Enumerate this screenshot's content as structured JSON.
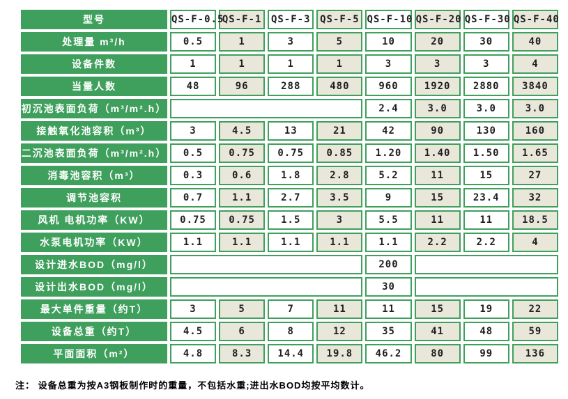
{
  "colors": {
    "green": "#3f9f5c",
    "beige": "#e9e6da",
    "cell_white": "#ffffff",
    "label_text": "#ffffff",
    "value_text": "#1f1f1f"
  },
  "table": {
    "header": {
      "label": "型号",
      "models": [
        "QS-F-0.5",
        "QS-F-1",
        "QS-F-3",
        "QS-F-5",
        "QS-F-10",
        "QS-F-20",
        "QS-F-30",
        "QS-F-40"
      ]
    },
    "rows": [
      {
        "label": "处理量 m³/h",
        "cells": [
          {
            "t": "0.5",
            "s": 1
          },
          {
            "t": "1",
            "s": 1
          },
          {
            "t": "3",
            "s": 1
          },
          {
            "t": "5",
            "s": 1
          },
          {
            "t": "10",
            "s": 1
          },
          {
            "t": "20",
            "s": 1
          },
          {
            "t": "30",
            "s": 1
          },
          {
            "t": "40",
            "s": 1
          }
        ]
      },
      {
        "label": "设备件数",
        "cells": [
          {
            "t": "1",
            "s": 1
          },
          {
            "t": "1",
            "s": 1
          },
          {
            "t": "1",
            "s": 1
          },
          {
            "t": "1",
            "s": 1
          },
          {
            "t": "3",
            "s": 1
          },
          {
            "t": "3",
            "s": 1
          },
          {
            "t": "3",
            "s": 1
          },
          {
            "t": "4",
            "s": 1
          }
        ]
      },
      {
        "label": "当量人数",
        "cells": [
          {
            "t": "48",
            "s": 1
          },
          {
            "t": "96",
            "s": 1
          },
          {
            "t": "288",
            "s": 1
          },
          {
            "t": "480",
            "s": 1
          },
          {
            "t": "960",
            "s": 1
          },
          {
            "t": "1920",
            "s": 1
          },
          {
            "t": "2880",
            "s": 1
          },
          {
            "t": "3840",
            "s": 1
          }
        ]
      },
      {
        "label": "初沉池表面负荷（m³/m².h）",
        "cells": [
          {
            "t": "",
            "s": 4
          },
          {
            "t": "2.4",
            "s": 1
          },
          {
            "t": "3.0",
            "s": 1
          },
          {
            "t": "3.0",
            "s": 1
          },
          {
            "t": "3.0",
            "s": 1
          }
        ]
      },
      {
        "label": "接触氧化池容积（m³）",
        "cells": [
          {
            "t": "3",
            "s": 1
          },
          {
            "t": "4.5",
            "s": 1
          },
          {
            "t": "13",
            "s": 1
          },
          {
            "t": "21",
            "s": 1
          },
          {
            "t": "42",
            "s": 1
          },
          {
            "t": "90",
            "s": 1
          },
          {
            "t": "130",
            "s": 1
          },
          {
            "t": "160",
            "s": 1
          }
        ]
      },
      {
        "label": "二沉池表面负荷（m³/m².h）",
        "cells": [
          {
            "t": "0.5",
            "s": 1
          },
          {
            "t": "0.75",
            "s": 1
          },
          {
            "t": "0.75",
            "s": 1
          },
          {
            "t": "0.85",
            "s": 1
          },
          {
            "t": "1.20",
            "s": 1
          },
          {
            "t": "1.40",
            "s": 1
          },
          {
            "t": "1.50",
            "s": 1
          },
          {
            "t": "1.65",
            "s": 1
          }
        ]
      },
      {
        "label": "消毒池容积（m³）",
        "cells": [
          {
            "t": "0.3",
            "s": 1
          },
          {
            "t": "0.6",
            "s": 1
          },
          {
            "t": "1.8",
            "s": 1
          },
          {
            "t": "2.8",
            "s": 1
          },
          {
            "t": "5.2",
            "s": 1
          },
          {
            "t": "11",
            "s": 1
          },
          {
            "t": "15",
            "s": 1
          },
          {
            "t": "27",
            "s": 1
          }
        ]
      },
      {
        "label": "调节池容积",
        "cells": [
          {
            "t": "0.7",
            "s": 1
          },
          {
            "t": "1.1",
            "s": 1
          },
          {
            "t": "2.7",
            "s": 1
          },
          {
            "t": "3.5",
            "s": 1
          },
          {
            "t": "9",
            "s": 1
          },
          {
            "t": "15",
            "s": 1
          },
          {
            "t": "23.4",
            "s": 1
          },
          {
            "t": "32",
            "s": 1
          }
        ]
      },
      {
        "label": "风机 电机功率（KW）",
        "cells": [
          {
            "t": "0.75",
            "s": 1
          },
          {
            "t": "0.75",
            "s": 1
          },
          {
            "t": "1.5",
            "s": 1
          },
          {
            "t": "3",
            "s": 1
          },
          {
            "t": "5.5",
            "s": 1
          },
          {
            "t": "11",
            "s": 1
          },
          {
            "t": "11",
            "s": 1
          },
          {
            "t": "18.5",
            "s": 1
          }
        ]
      },
      {
        "label": "水泵电机功率（KW）",
        "cells": [
          {
            "t": "1.1",
            "s": 1
          },
          {
            "t": "1.1",
            "s": 1
          },
          {
            "t": "1.1",
            "s": 1
          },
          {
            "t": "1.1",
            "s": 1
          },
          {
            "t": "1.1",
            "s": 1
          },
          {
            "t": "2.2",
            "s": 1
          },
          {
            "t": "2.2",
            "s": 1
          },
          {
            "t": "4",
            "s": 1
          }
        ]
      },
      {
        "label": "设计进水BOD（mg/l）",
        "cells": [
          {
            "t": "",
            "s": 4
          },
          {
            "t": "200",
            "s": 1
          },
          {
            "t": "",
            "s": 3
          }
        ]
      },
      {
        "label": "设计出水BOD（mg/l）",
        "cells": [
          {
            "t": "",
            "s": 4
          },
          {
            "t": "30",
            "s": 1
          },
          {
            "t": "",
            "s": 3
          }
        ]
      },
      {
        "label": "最大单件重量（约T）",
        "cells": [
          {
            "t": "3",
            "s": 1
          },
          {
            "t": "5",
            "s": 1
          },
          {
            "t": "7",
            "s": 1
          },
          {
            "t": "11",
            "s": 1
          },
          {
            "t": "11",
            "s": 1
          },
          {
            "t": "15",
            "s": 1
          },
          {
            "t": "19",
            "s": 1
          },
          {
            "t": "22",
            "s": 1
          }
        ]
      },
      {
        "label": "设备总重（约T）",
        "cells": [
          {
            "t": "4.5",
            "s": 1
          },
          {
            "t": "6",
            "s": 1
          },
          {
            "t": "8",
            "s": 1
          },
          {
            "t": "12",
            "s": 1
          },
          {
            "t": "35",
            "s": 1
          },
          {
            "t": "41",
            "s": 1
          },
          {
            "t": "48",
            "s": 1
          },
          {
            "t": "59",
            "s": 1
          }
        ]
      },
      {
        "label": "平面面积（m²）",
        "cells": [
          {
            "t": "4.8",
            "s": 1
          },
          {
            "t": "8.3",
            "s": 1
          },
          {
            "t": "14.4",
            "s": 1
          },
          {
            "t": "19.8",
            "s": 1
          },
          {
            "t": "46.2",
            "s": 1
          },
          {
            "t": "80",
            "s": 1
          },
          {
            "t": "99",
            "s": 1
          },
          {
            "t": "136",
            "s": 1
          }
        ]
      }
    ],
    "note": "注： 设备总重为按A3钢板制作时的重量，不包括水重;进出水BOD均按平均数计。"
  }
}
